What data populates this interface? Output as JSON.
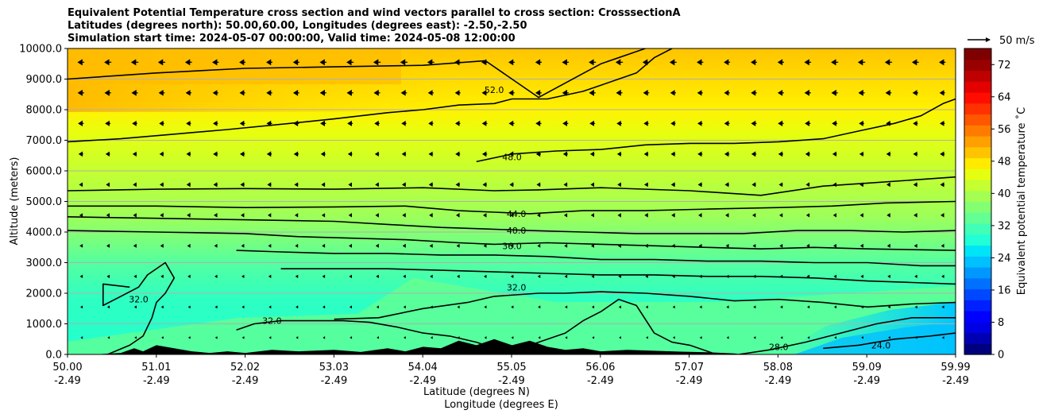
{
  "title_lines": [
    "Equivalent Potential Temperature cross section and wind vectors parallel to cross section: CrosssectionA",
    "Latitudes (degrees north): 50.00,60.00, Longitudes (degrees east): -2.50,-2.50",
    "Simulation start time: 2024-05-07 00:00:00, Valid time: 2024-05-08 12:00:00"
  ],
  "colors": {
    "ground": "#000000",
    "contour": "#000000",
    "grid": "#b0b0b0",
    "arrow": "#000000"
  },
  "chart_data": {
    "type": "contour",
    "xlabel": "Latitude (degrees N)",
    "xlabel2": "Longitude (degrees E)",
    "ylabel": "Altitude (meters)",
    "colorbar_label": "Equivalent potential temperature ˚C",
    "quiver_key_label": "50 m/s",
    "quiver_key_speed": 50,
    "xlim": [
      50.0,
      59.99
    ],
    "ylim": [
      0,
      10000
    ],
    "x_ticks": [
      {
        "lat": "50.00",
        "lon": "-2.49"
      },
      {
        "lat": "51.01",
        "lon": "-2.49"
      },
      {
        "lat": "52.02",
        "lon": "-2.49"
      },
      {
        "lat": "53.03",
        "lon": "-2.49"
      },
      {
        "lat": "54.04",
        "lon": "-2.49"
      },
      {
        "lat": "55.05",
        "lon": "-2.49"
      },
      {
        "lat": "56.06",
        "lon": "-2.49"
      },
      {
        "lat": "57.07",
        "lon": "-2.49"
      },
      {
        "lat": "58.08",
        "lon": "-2.49"
      },
      {
        "lat": "59.09",
        "lon": "-2.49"
      },
      {
        "lat": "59.99",
        "lon": "-2.49"
      }
    ],
    "y_ticks": [
      "0.0",
      "1000.0",
      "2000.0",
      "3000.0",
      "4000.0",
      "5000.0",
      "6000.0",
      "7000.0",
      "8000.0",
      "9000.0",
      "10000.0"
    ],
    "y_tick_values": [
      0,
      1000,
      2000,
      3000,
      4000,
      5000,
      6000,
      7000,
      8000,
      9000,
      10000
    ],
    "colorbar_ticks": [
      "0",
      "8",
      "16",
      "24",
      "32",
      "40",
      "48",
      "56",
      "64",
      "72"
    ],
    "colorbar_tick_values": [
      0,
      8,
      16,
      24,
      32,
      40,
      48,
      56,
      64,
      72
    ],
    "colorbar_range": [
      0,
      76
    ],
    "contour_lines": [
      {
        "level": 52,
        "label": "52.0",
        "label_at": [
          54.8,
          8650
        ],
        "points": [
          [
            50.0,
            9000
          ],
          [
            51.0,
            9200
          ],
          [
            52.0,
            9350
          ],
          [
            53.0,
            9400
          ],
          [
            54.0,
            9450
          ],
          [
            54.7,
            9600
          ],
          [
            55.3,
            8400
          ],
          [
            56.0,
            9500
          ],
          [
            56.5,
            10000
          ]
        ]
      },
      {
        "level": 48,
        "label": "48.0",
        "label_at": [
          55.0,
          6450
        ],
        "points": [
          [
            50.0,
            6950
          ],
          [
            50.6,
            7050
          ],
          [
            51.2,
            7200
          ],
          [
            51.8,
            7350
          ],
          [
            52.5,
            7550
          ],
          [
            53.0,
            7700
          ],
          [
            53.6,
            7900
          ],
          [
            54.0,
            8000
          ],
          [
            54.4,
            8150
          ],
          [
            54.8,
            8200
          ],
          [
            55.0,
            8350
          ],
          [
            55.4,
            8350
          ],
          [
            55.8,
            8600
          ],
          [
            56.0,
            8800
          ],
          [
            56.4,
            9200
          ],
          [
            56.6,
            9700
          ],
          [
            56.8,
            10000
          ]
        ]
      },
      {
        "level": 48.1,
        "label": "",
        "points": [
          [
            54.6,
            6300
          ],
          [
            55.0,
            6550
          ],
          [
            55.5,
            6650
          ],
          [
            56.0,
            6700
          ],
          [
            56.5,
            6850
          ],
          [
            57.0,
            6900
          ],
          [
            57.5,
            6900
          ],
          [
            58.0,
            6950
          ],
          [
            58.5,
            7050
          ],
          [
            58.9,
            7300
          ],
          [
            59.3,
            7550
          ],
          [
            59.6,
            7800
          ],
          [
            59.85,
            8200
          ],
          [
            59.99,
            8350
          ]
        ]
      },
      {
        "level": 46,
        "label": "",
        "points": [
          [
            50.0,
            5350
          ],
          [
            51.0,
            5400
          ],
          [
            52.0,
            5420
          ],
          [
            53.0,
            5400
          ],
          [
            54.0,
            5450
          ],
          [
            54.8,
            5350
          ],
          [
            55.3,
            5380
          ],
          [
            56.0,
            5450
          ],
          [
            57.0,
            5350
          ],
          [
            57.8,
            5200
          ],
          [
            58.5,
            5500
          ],
          [
            59.0,
            5600
          ],
          [
            59.5,
            5700
          ],
          [
            59.99,
            5800
          ]
        ]
      },
      {
        "level": 44,
        "label": "44.0",
        "label_at": [
          55.05,
          4600
        ],
        "points": [
          [
            50.0,
            4850
          ],
          [
            51.0,
            4850
          ],
          [
            52.0,
            4800
          ],
          [
            53.0,
            4820
          ],
          [
            53.8,
            4850
          ],
          [
            54.4,
            4700
          ],
          [
            54.8,
            4650
          ],
          [
            55.2,
            4600
          ],
          [
            55.8,
            4700
          ],
          [
            56.5,
            4700
          ],
          [
            57.2,
            4750
          ],
          [
            58.0,
            4800
          ],
          [
            58.6,
            4850
          ],
          [
            59.2,
            4950
          ],
          [
            59.99,
            5000
          ]
        ]
      },
      {
        "level": 40,
        "label": "40.0",
        "label_at": [
          55.05,
          4050
        ],
        "points": [
          [
            50.0,
            4500
          ],
          [
            51.0,
            4450
          ],
          [
            52.0,
            4400
          ],
          [
            53.0,
            4350
          ],
          [
            53.6,
            4250
          ],
          [
            54.2,
            4150
          ],
          [
            54.7,
            4100
          ],
          [
            55.2,
            4050
          ],
          [
            55.8,
            4000
          ],
          [
            56.4,
            3950
          ],
          [
            57.0,
            3950
          ],
          [
            57.6,
            3950
          ],
          [
            58.2,
            4050
          ],
          [
            58.8,
            4050
          ],
          [
            59.4,
            4000
          ],
          [
            59.99,
            4050
          ]
        ]
      },
      {
        "level": 38,
        "label": "",
        "points": [
          [
            50.0,
            4050
          ],
          [
            51.0,
            4000
          ],
          [
            52.0,
            3950
          ],
          [
            52.6,
            3850
          ],
          [
            53.2,
            3800
          ],
          [
            53.8,
            3750
          ],
          [
            54.4,
            3650
          ],
          [
            54.8,
            3600
          ],
          [
            55.4,
            3650
          ],
          [
            56.0,
            3600
          ],
          [
            56.6,
            3550
          ],
          [
            57.2,
            3500
          ],
          [
            57.8,
            3450
          ],
          [
            58.4,
            3500
          ],
          [
            59.0,
            3450
          ],
          [
            59.99,
            3400
          ]
        ]
      },
      {
        "level": 36,
        "label": "36.0",
        "label_at": [
          55.0,
          3550
        ],
        "points": [
          [
            51.9,
            3400
          ],
          [
            52.4,
            3350
          ],
          [
            53.0,
            3300
          ],
          [
            53.6,
            3300
          ],
          [
            54.2,
            3250
          ],
          [
            54.8,
            3250
          ],
          [
            55.4,
            3200
          ],
          [
            56.0,
            3100
          ],
          [
            56.6,
            3100
          ],
          [
            57.2,
            3050
          ],
          [
            57.8,
            3050
          ],
          [
            58.4,
            3000
          ],
          [
            59.0,
            3000
          ],
          [
            59.6,
            2900
          ],
          [
            59.99,
            2900
          ]
        ]
      },
      {
        "level": 34,
        "label": "",
        "points": [
          [
            52.4,
            2800
          ],
          [
            53.0,
            2800
          ],
          [
            53.6,
            2800
          ],
          [
            54.2,
            2750
          ],
          [
            54.8,
            2700
          ],
          [
            55.4,
            2650
          ],
          [
            56.0,
            2600
          ],
          [
            56.6,
            2600
          ],
          [
            57.2,
            2550
          ],
          [
            57.8,
            2550
          ],
          [
            58.4,
            2500
          ],
          [
            59.0,
            2400
          ],
          [
            59.5,
            2350
          ],
          [
            59.99,
            2300
          ]
        ]
      },
      {
        "level": 32,
        "label": "32.0",
        "label_at": [
          55.05,
          2200
        ],
        "points": [
          [
            53.0,
            1150
          ],
          [
            53.5,
            1200
          ],
          [
            54.0,
            1500
          ],
          [
            54.5,
            1700
          ],
          [
            54.8,
            1900
          ],
          [
            55.3,
            2000
          ],
          [
            55.6,
            2000
          ],
          [
            56.0,
            2050
          ],
          [
            56.5,
            2000
          ],
          [
            57.0,
            1900
          ],
          [
            57.5,
            1750
          ],
          [
            58.0,
            1800
          ],
          [
            58.5,
            1700
          ],
          [
            59.0,
            1550
          ],
          [
            59.5,
            1650
          ],
          [
            59.99,
            1700
          ]
        ]
      },
      {
        "level": 32.1,
        "label": "32.0",
        "label_at": [
          52.3,
          1100
        ],
        "points": [
          [
            51.9,
            800
          ],
          [
            52.1,
            1000
          ],
          [
            52.4,
            1100
          ],
          [
            52.8,
            1100
          ],
          [
            53.1,
            1100
          ],
          [
            53.4,
            1050
          ],
          [
            53.7,
            900
          ],
          [
            54.0,
            700
          ],
          [
            54.3,
            600
          ],
          [
            54.6,
            400
          ],
          [
            54.8,
            200
          ],
          [
            55.0,
            100
          ],
          [
            55.3,
            400
          ],
          [
            55.6,
            700
          ],
          [
            55.8,
            1100
          ],
          [
            56.0,
            1400
          ],
          [
            56.2,
            1800
          ],
          [
            56.4,
            1600
          ],
          [
            56.6,
            700
          ],
          [
            56.8,
            400
          ],
          [
            57.0,
            300
          ],
          [
            57.2,
            100
          ],
          [
            57.3,
            0
          ]
        ]
      },
      {
        "level": 32.2,
        "label": "32.0",
        "label_at": [
          50.8,
          1800
        ],
        "points": [
          [
            50.45,
            0
          ],
          [
            50.7,
            300
          ],
          [
            50.85,
            600
          ],
          [
            50.95,
            1200
          ],
          [
            51.0,
            1700
          ],
          [
            51.1,
            2000
          ],
          [
            51.2,
            2500
          ],
          [
            51.1,
            3000
          ],
          [
            50.9,
            2600
          ],
          [
            50.8,
            2200
          ],
          [
            50.6,
            1900
          ],
          [
            50.4,
            1600
          ],
          [
            50.4,
            2300
          ],
          [
            50.7,
            2200
          ]
        ]
      },
      {
        "level": 28,
        "label": "28.0",
        "label_at": [
          58.0,
          250
        ],
        "points": [
          [
            57.55,
            0
          ],
          [
            57.9,
            150
          ],
          [
            58.3,
            400
          ],
          [
            58.7,
            700
          ],
          [
            59.1,
            1000
          ],
          [
            59.5,
            1200
          ],
          [
            59.99,
            1200
          ]
        ]
      },
      {
        "level": 24,
        "label": "24.0",
        "label_at": [
          59.15,
          300
        ],
        "points": [
          [
            58.5,
            200
          ],
          [
            58.9,
            300
          ],
          [
            59.3,
            500
          ],
          [
            59.7,
            600
          ],
          [
            59.99,
            700
          ]
        ]
      }
    ],
    "terrain": [
      [
        50.0,
        0
      ],
      [
        50.3,
        0
      ],
      [
        50.6,
        50
      ],
      [
        50.75,
        200
      ],
      [
        50.85,
        100
      ],
      [
        51.0,
        300
      ],
      [
        51.2,
        200
      ],
      [
        51.4,
        100
      ],
      [
        51.6,
        50
      ],
      [
        51.8,
        100
      ],
      [
        52.0,
        50
      ],
      [
        52.3,
        150
      ],
      [
        52.6,
        100
      ],
      [
        53.0,
        150
      ],
      [
        53.3,
        80
      ],
      [
        53.6,
        200
      ],
      [
        53.8,
        100
      ],
      [
        54.0,
        250
      ],
      [
        54.2,
        200
      ],
      [
        54.4,
        450
      ],
      [
        54.6,
        300
      ],
      [
        54.8,
        500
      ],
      [
        55.0,
        300
      ],
      [
        55.2,
        450
      ],
      [
        55.4,
        250
      ],
      [
        55.6,
        150
      ],
      [
        55.8,
        200
      ],
      [
        56.0,
        100
      ],
      [
        56.3,
        150
      ],
      [
        56.6,
        120
      ],
      [
        56.9,
        90
      ],
      [
        57.2,
        70
      ],
      [
        57.5,
        30
      ],
      [
        57.6,
        0
      ]
    ],
    "colorbar_colors": [
      "#00007f",
      "#0000b2",
      "#0000e5",
      "#0000ff",
      "#0020ff",
      "#0048ff",
      "#0070ff",
      "#0098ff",
      "#00c0ff",
      "#00e4f8",
      "#20ffd6",
      "#41ffb6",
      "#62ff94",
      "#83ff73",
      "#a4ff52",
      "#c5ff31",
      "#e6ff10",
      "#ffea00",
      "#ffc400",
      "#ffa000",
      "#ff7b00",
      "#ff5600",
      "#ff3100",
      "#ff0d00",
      "#e50000",
      "#bf0000",
      "#990000",
      "#7f0000"
    ]
  }
}
